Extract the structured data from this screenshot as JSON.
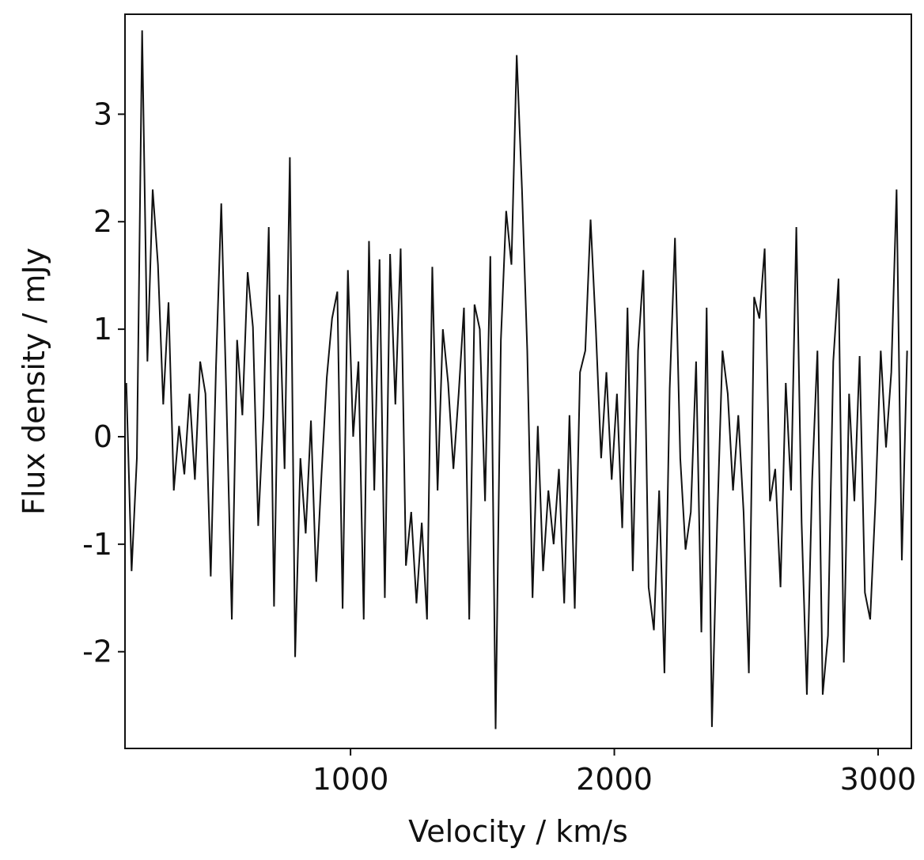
{
  "chart_data": {
    "type": "line",
    "xlabel": "Velocity / km/s",
    "ylabel": "Flux density / mJy",
    "xlim": [
      145,
      3126
    ],
    "xticks": [
      1000,
      2000,
      3000
    ],
    "ylim": [
      -2.9,
      3.93
    ],
    "yticks": [
      -2,
      -1,
      0,
      1,
      2,
      3
    ],
    "grid": false,
    "x": [
      150,
      170,
      190,
      210,
      230,
      250,
      270,
      290,
      310,
      330,
      350,
      370,
      390,
      410,
      430,
      450,
      470,
      490,
      510,
      530,
      550,
      570,
      590,
      610,
      630,
      650,
      670,
      690,
      710,
      730,
      750,
      770,
      790,
      810,
      830,
      850,
      870,
      890,
      910,
      930,
      950,
      970,
      990,
      1010,
      1030,
      1050,
      1070,
      1090,
      1110,
      1130,
      1150,
      1170,
      1190,
      1210,
      1230,
      1250,
      1270,
      1290,
      1310,
      1330,
      1350,
      1370,
      1390,
      1410,
      1430,
      1450,
      1470,
      1490,
      1510,
      1530,
      1550,
      1570,
      1590,
      1610,
      1630,
      1650,
      1670,
      1690,
      1710,
      1730,
      1750,
      1770,
      1790,
      1810,
      1830,
      1850,
      1870,
      1890,
      1910,
      1930,
      1950,
      1970,
      1990,
      2010,
      2030,
      2050,
      2070,
      2090,
      2110,
      2130,
      2150,
      2170,
      2190,
      2210,
      2230,
      2250,
      2270,
      2290,
      2310,
      2330,
      2350,
      2370,
      2390,
      2410,
      2430,
      2450,
      2470,
      2490,
      2510,
      2530,
      2550,
      2570,
      2590,
      2610,
      2630,
      2650,
      2670,
      2690,
      2710,
      2730,
      2750,
      2770,
      2790,
      2810,
      2830,
      2850,
      2870,
      2890,
      2910,
      2930,
      2950,
      2970,
      2990,
      3010,
      3030,
      3050,
      3070,
      3090,
      3110
    ],
    "series": [
      {
        "color": "#111111",
        "values": [
          0.5,
          -1.25,
          -0.2,
          3.78,
          0.7,
          2.3,
          1.6,
          0.3,
          1.25,
          -0.5,
          0.1,
          -0.35,
          0.4,
          -0.4,
          0.7,
          0.4,
          -1.3,
          0.65,
          2.17,
          0.3,
          -1.7,
          0.9,
          0.2,
          1.53,
          1.02,
          -0.83,
          0.2,
          1.95,
          -1.58,
          1.32,
          -0.3,
          2.6,
          -2.05,
          -0.2,
          -0.9,
          0.15,
          -1.35,
          -0.35,
          0.55,
          1.1,
          1.35,
          -1.6,
          1.55,
          0.0,
          0.7,
          -1.7,
          1.82,
          -0.5,
          1.65,
          -1.5,
          1.7,
          0.3,
          1.75,
          -1.2,
          -0.7,
          -1.55,
          -0.8,
          -1.7,
          1.58,
          -0.5,
          1.0,
          0.5,
          -0.3,
          0.4,
          1.2,
          -1.7,
          1.23,
          1.0,
          -0.6,
          1.68,
          -2.72,
          0.9,
          2.1,
          1.6,
          3.55,
          2.3,
          0.8,
          -1.5,
          0.1,
          -1.25,
          -0.5,
          -1.0,
          -0.3,
          -1.55,
          0.2,
          -1.6,
          0.6,
          0.8,
          2.02,
          1.0,
          -0.2,
          0.6,
          -0.4,
          0.4,
          -0.85,
          1.2,
          -1.25,
          0.8,
          1.55,
          -1.4,
          -1.8,
          -0.5,
          -2.2,
          0.45,
          1.85,
          -0.2,
          -1.05,
          -0.7,
          0.7,
          -1.82,
          1.2,
          -2.7,
          -0.8,
          0.8,
          0.4,
          -0.5,
          0.2,
          -0.7,
          -2.2,
          1.3,
          1.1,
          1.75,
          -0.6,
          -0.3,
          -1.4,
          0.5,
          -0.5,
          1.95,
          -0.8,
          -2.4,
          -0.4,
          0.8,
          -2.4,
          -1.85,
          0.7,
          1.47,
          -2.1,
          0.4,
          -0.6,
          0.75,
          -1.45,
          -1.7,
          -0.6,
          0.8,
          -0.1,
          0.6,
          2.3,
          -1.15,
          0.8
        ]
      }
    ]
  }
}
